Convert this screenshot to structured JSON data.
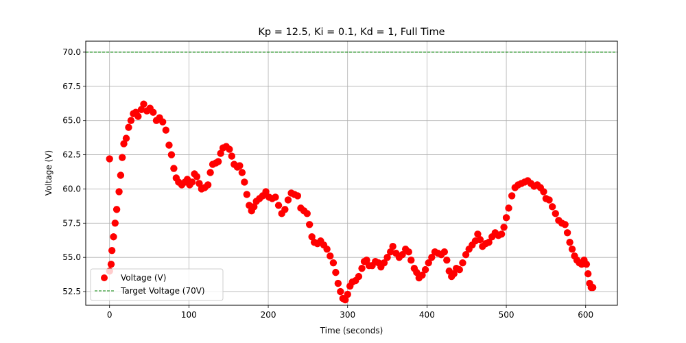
{
  "chart_data": {
    "type": "scatter",
    "title": "Kp = 12.5, Ki = 0.1, Kd = 1, Full Time",
    "xlabel": "Time (seconds)",
    "ylabel": "Voltage (V)",
    "xlim": [
      -30,
      640
    ],
    "ylim": [
      51.5,
      70.8
    ],
    "xticks": [
      "0",
      "100",
      "200",
      "300",
      "400",
      "500",
      "600"
    ],
    "yticks": [
      "52.5",
      "55.0",
      "57.5",
      "60.0",
      "62.5",
      "65.0",
      "67.5",
      "70.0"
    ],
    "grid": true,
    "legend_position": "lower-left",
    "series": [
      {
        "name": "Voltage (V)",
        "kind": "scatter",
        "color": "#ff0000",
        "points": [
          [
            0,
            62.2
          ],
          [
            0,
            54.0
          ],
          [
            2,
            54.5
          ],
          [
            3,
            55.5
          ],
          [
            5,
            56.5
          ],
          [
            7,
            57.5
          ],
          [
            9,
            58.5
          ],
          [
            12,
            59.8
          ],
          [
            14,
            61.0
          ],
          [
            16,
            62.3
          ],
          [
            18,
            63.3
          ],
          [
            21,
            63.7
          ],
          [
            24,
            64.5
          ],
          [
            27,
            65.0
          ],
          [
            30,
            65.5
          ],
          [
            33,
            65.6
          ],
          [
            36,
            65.3
          ],
          [
            40,
            65.8
          ],
          [
            43,
            66.2
          ],
          [
            47,
            65.7
          ],
          [
            51,
            65.9
          ],
          [
            55,
            65.6
          ],
          [
            59,
            65.0
          ],
          [
            63,
            65.2
          ],
          [
            67,
            64.9
          ],
          [
            71,
            64.3
          ],
          [
            75,
            63.2
          ],
          [
            78,
            62.5
          ],
          [
            81,
            61.5
          ],
          [
            84,
            60.8
          ],
          [
            87,
            60.5
          ],
          [
            91,
            60.3
          ],
          [
            95,
            60.5
          ],
          [
            98,
            60.7
          ],
          [
            101,
            60.3
          ],
          [
            104,
            60.5
          ],
          [
            107,
            61.1
          ],
          [
            110,
            60.9
          ],
          [
            113,
            60.4
          ],
          [
            116,
            60.0
          ],
          [
            120,
            60.1
          ],
          [
            124,
            60.3
          ],
          [
            127,
            61.2
          ],
          [
            130,
            61.8
          ],
          [
            134,
            61.9
          ],
          [
            137,
            62.0
          ],
          [
            140,
            62.6
          ],
          [
            143,
            63.0
          ],
          [
            147,
            63.1
          ],
          [
            151,
            62.9
          ],
          [
            154,
            62.4
          ],
          [
            157,
            61.8
          ],
          [
            161,
            61.6
          ],
          [
            164,
            61.7
          ],
          [
            167,
            61.2
          ],
          [
            170,
            60.5
          ],
          [
            173,
            59.6
          ],
          [
            176,
            58.8
          ],
          [
            179,
            58.4
          ],
          [
            182,
            58.7
          ],
          [
            185,
            59.1
          ],
          [
            189,
            59.3
          ],
          [
            193,
            59.5
          ],
          [
            197,
            59.8
          ],
          [
            201,
            59.4
          ],
          [
            205,
            59.3
          ],
          [
            209,
            59.4
          ],
          [
            213,
            58.8
          ],
          [
            217,
            58.2
          ],
          [
            221,
            58.5
          ],
          [
            225,
            59.2
          ],
          [
            229,
            59.7
          ],
          [
            233,
            59.6
          ],
          [
            237,
            59.5
          ],
          [
            241,
            58.6
          ],
          [
            245,
            58.4
          ],
          [
            249,
            58.2
          ],
          [
            252,
            57.4
          ],
          [
            255,
            56.5
          ],
          [
            258,
            56.1
          ],
          [
            262,
            56.0
          ],
          [
            266,
            56.2
          ],
          [
            270,
            55.9
          ],
          [
            274,
            55.6
          ],
          [
            278,
            55.1
          ],
          [
            282,
            54.6
          ],
          [
            285,
            53.9
          ],
          [
            288,
            53.1
          ],
          [
            291,
            52.5
          ],
          [
            294,
            52.0
          ],
          [
            297,
            51.9
          ],
          [
            300,
            52.3
          ],
          [
            303,
            52.9
          ],
          [
            306,
            53.2
          ],
          [
            310,
            53.3
          ],
          [
            314,
            53.6
          ],
          [
            318,
            54.2
          ],
          [
            321,
            54.7
          ],
          [
            324,
            54.8
          ],
          [
            327,
            54.4
          ],
          [
            331,
            54.4
          ],
          [
            335,
            54.7
          ],
          [
            339,
            54.6
          ],
          [
            342,
            54.3
          ],
          [
            346,
            54.6
          ],
          [
            350,
            55.0
          ],
          [
            354,
            55.4
          ],
          [
            357,
            55.8
          ],
          [
            361,
            55.3
          ],
          [
            365,
            55.0
          ],
          [
            369,
            55.2
          ],
          [
            373,
            55.6
          ],
          [
            377,
            55.4
          ],
          [
            380,
            54.8
          ],
          [
            384,
            54.2
          ],
          [
            387,
            53.9
          ],
          [
            390,
            53.5
          ],
          [
            394,
            53.7
          ],
          [
            398,
            54.1
          ],
          [
            402,
            54.6
          ],
          [
            406,
            55.0
          ],
          [
            410,
            55.4
          ],
          [
            414,
            55.3
          ],
          [
            418,
            55.2
          ],
          [
            422,
            55.4
          ],
          [
            425,
            54.8
          ],
          [
            428,
            54.0
          ],
          [
            431,
            53.6
          ],
          [
            434,
            53.8
          ],
          [
            437,
            54.2
          ],
          [
            441,
            54.1
          ],
          [
            445,
            54.6
          ],
          [
            449,
            55.2
          ],
          [
            453,
            55.6
          ],
          [
            457,
            55.9
          ],
          [
            461,
            56.2
          ],
          [
            464,
            56.7
          ],
          [
            467,
            56.3
          ],
          [
            470,
            55.8
          ],
          [
            474,
            56.0
          ],
          [
            478,
            56.1
          ],
          [
            482,
            56.5
          ],
          [
            486,
            56.8
          ],
          [
            490,
            56.6
          ],
          [
            494,
            56.7
          ],
          [
            497,
            57.2
          ],
          [
            500,
            57.9
          ],
          [
            503,
            58.6
          ],
          [
            507,
            59.5
          ],
          [
            511,
            60.1
          ],
          [
            515,
            60.3
          ],
          [
            519,
            60.4
          ],
          [
            523,
            60.5
          ],
          [
            527,
            60.6
          ],
          [
            531,
            60.4
          ],
          [
            535,
            60.2
          ],
          [
            539,
            60.3
          ],
          [
            543,
            60.1
          ],
          [
            547,
            59.8
          ],
          [
            550,
            59.3
          ],
          [
            554,
            59.2
          ],
          [
            558,
            58.7
          ],
          [
            562,
            58.2
          ],
          [
            566,
            57.7
          ],
          [
            570,
            57.5
          ],
          [
            574,
            57.4
          ],
          [
            577,
            56.8
          ],
          [
            580,
            56.1
          ],
          [
            583,
            55.6
          ],
          [
            586,
            55.1
          ],
          [
            589,
            54.8
          ],
          [
            592,
            54.6
          ],
          [
            595,
            54.5
          ],
          [
            598,
            54.8
          ],
          [
            601,
            54.5
          ],
          [
            603,
            53.8
          ],
          [
            605,
            53.1
          ],
          [
            607,
            52.8
          ],
          [
            609,
            52.8
          ]
        ]
      },
      {
        "name": "Target Voltage (70V)",
        "kind": "hline",
        "y": 70,
        "color": "#008000",
        "dash": "dashed"
      }
    ]
  }
}
